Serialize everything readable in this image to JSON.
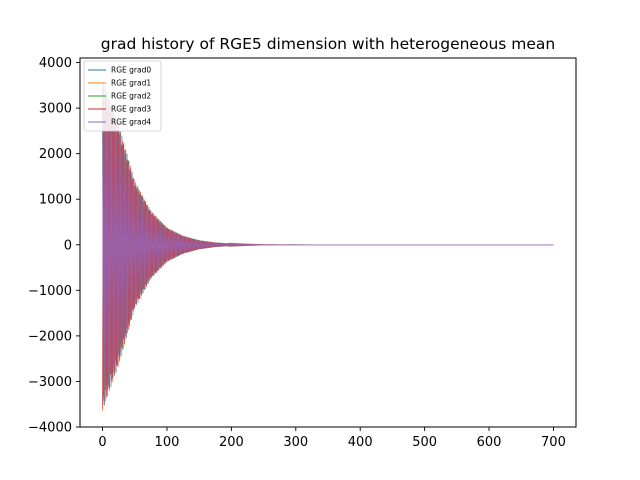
{
  "chart_data": {
    "type": "line",
    "title": "grad history of RGE5 dimension with heterogeneous mean",
    "xlabel": "",
    "ylabel": "",
    "xlim": [
      -35,
      735
    ],
    "ylim": [
      -4000,
      4100
    ],
    "xticks": [
      0,
      100,
      200,
      300,
      400,
      500,
      600,
      700
    ],
    "xtick_labels": [
      "0",
      "100",
      "200",
      "300",
      "400",
      "500",
      "600",
      "700"
    ],
    "yticks": [
      4000,
      3000,
      2000,
      1000,
      0,
      -1000,
      -2000,
      -3000,
      -4000
    ],
    "ytick_labels": [
      "4000",
      "3000",
      "2000",
      "1000",
      "0",
      "−1000",
      "−2000",
      "−3000",
      "−4000"
    ],
    "grid": false,
    "legend_placement": "upper-left",
    "n_iterations": 701,
    "envelope": {
      "x": [
        0,
        25,
        50,
        75,
        100,
        125,
        150,
        175,
        200,
        250,
        300,
        700
      ],
      "upper": [
        3650,
        2650,
        1400,
        750,
        380,
        200,
        100,
        50,
        25,
        5,
        1,
        0
      ],
      "lower": [
        -3650,
        -2650,
        -1400,
        -750,
        -380,
        -200,
        -100,
        -50,
        -25,
        -5,
        -1,
        0
      ]
    },
    "series": [
      {
        "name": "RGE grad0",
        "color": "#1f77b4"
      },
      {
        "name": "RGE grad1",
        "color": "#ff7f0e"
      },
      {
        "name": "RGE grad2",
        "color": "#2ca02c"
      },
      {
        "name": "RGE grad3",
        "color": "#d62728"
      },
      {
        "name": "RGE grad4",
        "color": "#9467bd"
      }
    ]
  }
}
